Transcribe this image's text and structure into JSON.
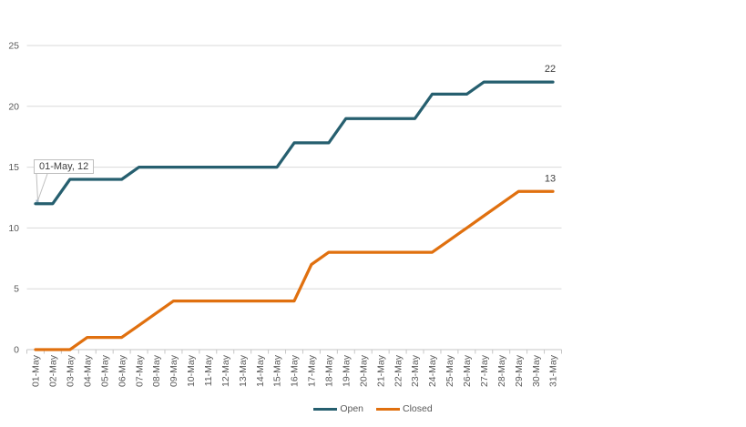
{
  "chart_data": {
    "type": "line",
    "title": "",
    "xlabel": "",
    "ylabel": "",
    "x": [
      "01-May",
      "02-May",
      "03-May",
      "04-May",
      "05-May",
      "06-May",
      "07-May",
      "08-May",
      "09-May",
      "10-May",
      "11-May",
      "12-May",
      "13-May",
      "14-May",
      "15-May",
      "16-May",
      "17-May",
      "18-May",
      "19-May",
      "20-May",
      "21-May",
      "22-May",
      "23-May",
      "24-May",
      "25-May",
      "26-May",
      "27-May",
      "28-May",
      "29-May",
      "30-May",
      "31-May"
    ],
    "series": [
      {
        "name": "Open",
        "color": "#265F6F",
        "end_label": "22",
        "values": [
          12,
          12,
          14,
          14,
          14,
          14,
          15,
          15,
          15,
          15,
          15,
          15,
          15,
          15,
          15,
          17,
          17,
          17,
          19,
          19,
          19,
          19,
          19,
          21,
          21,
          21,
          22,
          22,
          22,
          22,
          22
        ]
      },
      {
        "name": "Closed",
        "color": "#E0700F",
        "end_label": "13",
        "values": [
          0,
          0,
          0,
          1,
          1,
          1,
          2,
          3,
          4,
          4,
          4,
          4,
          4,
          4,
          4,
          4,
          7,
          8,
          8,
          8,
          8,
          8,
          8,
          8,
          9,
          10,
          11,
          12,
          13,
          13,
          13
        ]
      }
    ],
    "ylim": [
      0,
      25
    ],
    "yticks": [
      0,
      5,
      10,
      15,
      20,
      25
    ],
    "grid": "horizontal-only",
    "legend_position": "bottom",
    "x_tick_label_rotation": -90
  },
  "tooltip": {
    "text": "01-May, 12",
    "anchor_point": "01-May, Open series, value 12"
  },
  "colors": {
    "gridline": "#D9D9D9",
    "axis_line": "#C6C6C6",
    "tick": "#C6C6C6",
    "axis_label": "#595959",
    "legend_label": "#595959",
    "data_label": "#404040",
    "tooltip_border": "#BFBFBF",
    "tooltip_text": "#404040",
    "callout_line": "#BFBFBF",
    "anchor_dot": "#9FB4C4"
  }
}
